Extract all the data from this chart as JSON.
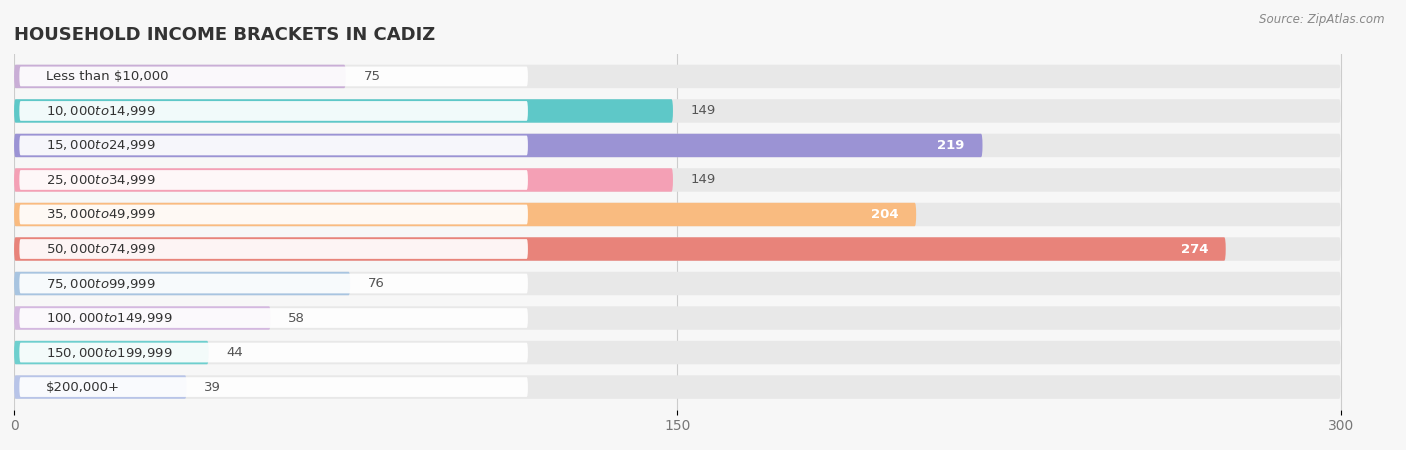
{
  "title": "HOUSEHOLD INCOME BRACKETS IN CADIZ",
  "source": "Source: ZipAtlas.com",
  "categories": [
    "Less than $10,000",
    "$10,000 to $14,999",
    "$15,000 to $24,999",
    "$25,000 to $34,999",
    "$35,000 to $49,999",
    "$50,000 to $74,999",
    "$75,000 to $99,999",
    "$100,000 to $149,999",
    "$150,000 to $199,999",
    "$200,000+"
  ],
  "values": [
    75,
    149,
    219,
    149,
    204,
    274,
    76,
    58,
    44,
    39
  ],
  "bar_colors": [
    "#c9aed6",
    "#5ec8c8",
    "#9b93d4",
    "#f4a0b5",
    "#f9bb80",
    "#e8837a",
    "#a8c4e0",
    "#d4b8e0",
    "#6ecfce",
    "#b8c4e8"
  ],
  "xlim": [
    0,
    310
  ],
  "xticks": [
    0,
    150,
    300
  ],
  "background_color": "#f7f7f7",
  "bar_bg_color": "#e8e8e8",
  "title_fontsize": 13,
  "label_fontsize": 9.5,
  "value_fontsize": 9.5,
  "bar_height": 0.68,
  "figsize": [
    14.06,
    4.5
  ]
}
